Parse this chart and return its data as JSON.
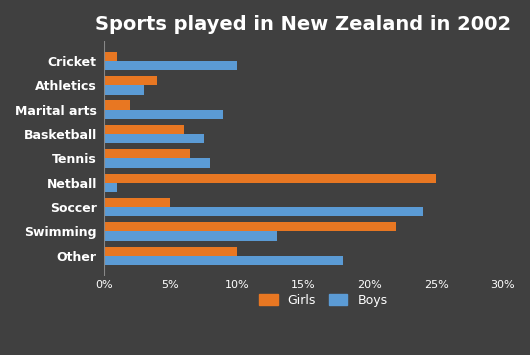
{
  "title": "Sports played in New Zealand in 2002",
  "categories": [
    "Other",
    "Swimming",
    "Soccer",
    "Netball",
    "Tennis",
    "Basketball",
    "Marital arts",
    "Athletics",
    "Cricket"
  ],
  "girls": [
    10,
    22,
    5,
    25,
    6.5,
    6,
    2,
    4,
    1
  ],
  "boys": [
    18,
    13,
    24,
    1,
    8,
    7.5,
    9,
    3,
    10
  ],
  "girls_color": "#E87722",
  "boys_color": "#5B9BD5",
  "background_color": "#404040",
  "text_color": "#ffffff",
  "xlim": [
    0,
    30
  ],
  "xticks": [
    0,
    5,
    10,
    15,
    20,
    25,
    30
  ],
  "xtick_labels": [
    "0%",
    "5%",
    "10%",
    "15%",
    "20%",
    "25%",
    "30%"
  ],
  "title_fontsize": 14,
  "bar_height": 0.38,
  "legend_labels": [
    "Girls",
    "Boys"
  ]
}
